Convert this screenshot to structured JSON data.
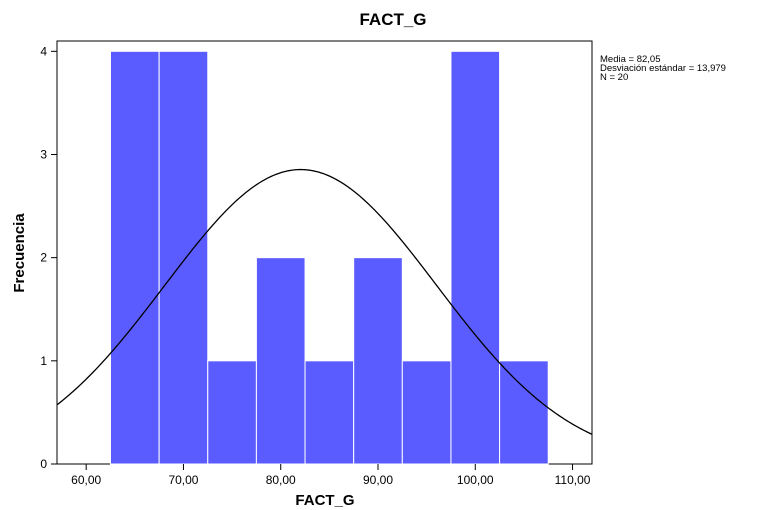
{
  "chart_data": {
    "type": "bar",
    "title": "FACT_G",
    "xlabel": "FACT_G",
    "ylabel": "Frecuencia",
    "xlim": [
      57,
      112
    ],
    "ylim": [
      0,
      4.1
    ],
    "x_ticks": [
      60,
      70,
      80,
      90,
      100,
      110
    ],
    "x_tick_labels": [
      "60,00",
      "70,00",
      "80,00",
      "90,00",
      "100,00",
      "110,00"
    ],
    "y_ticks": [
      0,
      1,
      2,
      3,
      4
    ],
    "y_tick_labels": [
      "0",
      "1",
      "2",
      "3",
      "4"
    ],
    "bin_width": 5,
    "bins": [
      {
        "start": 62.5,
        "end": 67.5,
        "count": 4
      },
      {
        "start": 67.5,
        "end": 72.5,
        "count": 4
      },
      {
        "start": 72.5,
        "end": 77.5,
        "count": 1
      },
      {
        "start": 77.5,
        "end": 82.5,
        "count": 2
      },
      {
        "start": 82.5,
        "end": 87.5,
        "count": 1
      },
      {
        "start": 87.5,
        "end": 92.5,
        "count": 2
      },
      {
        "start": 92.5,
        "end": 97.5,
        "count": 1
      },
      {
        "start": 97.5,
        "end": 102.5,
        "count": 4
      },
      {
        "start": 102.5,
        "end": 107.5,
        "count": 1
      }
    ],
    "normal_curve": {
      "mean": 82.05,
      "sd": 13.979,
      "n": 20
    },
    "stats_lines": [
      "Media = 82,05",
      "Desviación estándar = 13,979",
      "N = 20"
    ],
    "bar_color": "#5b5cff",
    "bar_edge_color": "#ffffff",
    "curve_color": "#000000",
    "grid": false,
    "legend": "none"
  }
}
